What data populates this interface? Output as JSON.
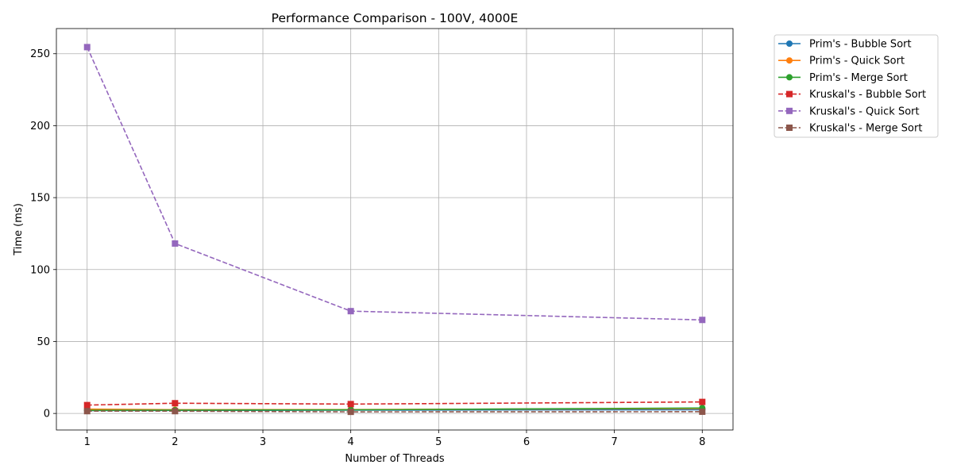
{
  "chart_data": {
    "type": "line",
    "title": "Performance Comparison - 100V, 4000E",
    "xlabel": "Number of Threads",
    "ylabel": "Time (ms)",
    "x": [
      1,
      2,
      4,
      8
    ],
    "xlim": [
      0.65,
      8.35
    ],
    "ylim": [
      -11.5,
      267.5
    ],
    "xticks": [
      1,
      2,
      3,
      4,
      5,
      6,
      7,
      8
    ],
    "yticks": [
      0,
      50,
      100,
      150,
      200,
      250
    ],
    "grid": true,
    "legend_position": "outside-top-right",
    "series": [
      {
        "name": "Prim's - Bubble Sort",
        "values": [
          2.0,
          2.1,
          2.3,
          2.6
        ],
        "color": "#1f77b4",
        "linestyle": "solid",
        "marker": "circle"
      },
      {
        "name": "Prim's - Quick Sort",
        "values": [
          3.0,
          2.6,
          2.7,
          3.4
        ],
        "color": "#ff7f0e",
        "linestyle": "solid",
        "marker": "circle"
      },
      {
        "name": "Prim's - Merge Sort",
        "values": [
          2.2,
          2.3,
          2.5,
          3.8
        ],
        "color": "#2ca02c",
        "linestyle": "solid",
        "marker": "circle"
      },
      {
        "name": "Kruskal's - Bubble Sort",
        "values": [
          5.8,
          7.1,
          6.5,
          8.0
        ],
        "color": "#d62728",
        "linestyle": "dashed",
        "marker": "square"
      },
      {
        "name": "Kruskal's - Quick Sort",
        "values": [
          254.6,
          118.1,
          71.1,
          65.0
        ],
        "color": "#9467bd",
        "linestyle": "dashed",
        "marker": "square"
      },
      {
        "name": "Kruskal's - Merge Sort",
        "values": [
          1.6,
          1.6,
          1.1,
          1.2
        ],
        "color": "#8c564b",
        "linestyle": "dashed",
        "marker": "square"
      }
    ]
  }
}
